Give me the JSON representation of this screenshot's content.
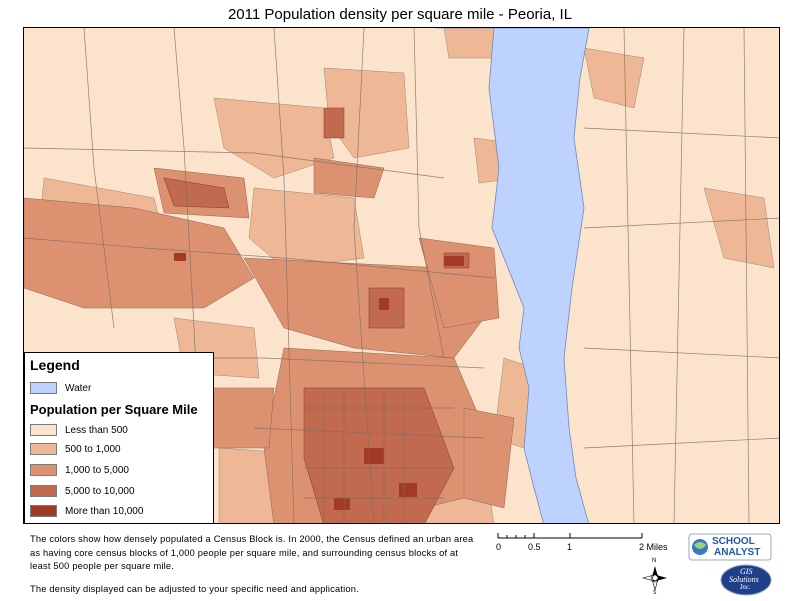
{
  "title": "2011 Population density per square mile - Peoria, IL",
  "legend": {
    "title": "Legend",
    "water": {
      "label": "Water",
      "color": "#bed2ff"
    },
    "subtitle": "Population per Square Mile",
    "classes": [
      {
        "label": "Less than 500",
        "color": "#fbe3cc"
      },
      {
        "label": "500 to 1,000",
        "color": "#eeb896"
      },
      {
        "label": "1,000 to 5,000",
        "color": "#dc9170"
      },
      {
        "label": "5,000 to 10,000",
        "color": "#c26a4f"
      },
      {
        "label": "More than 10,000",
        "color": "#a23a24"
      }
    ]
  },
  "description": "The colors show how densely populated a Census Block is. In 2000, the Census defined an urban area as having core census blocks of 1,000 people per square mile, and surrounding census blocks of at least 500 people per square mile.",
  "note": "The density displayed can be adjusted to your specific need and application.",
  "scale": {
    "ticks": [
      "0",
      "0.5",
      "1",
      "2 Miles"
    ]
  },
  "north": {
    "label": "N",
    "south_label": "S",
    "icon": "compass-rose-icon"
  },
  "logos": {
    "school_analyst": {
      "line1": "SCHOOL",
      "line2": "ANALYST"
    },
    "gis_solutions": {
      "line1": "GIS",
      "line2": "Solutions",
      "line3": "Inc."
    }
  }
}
